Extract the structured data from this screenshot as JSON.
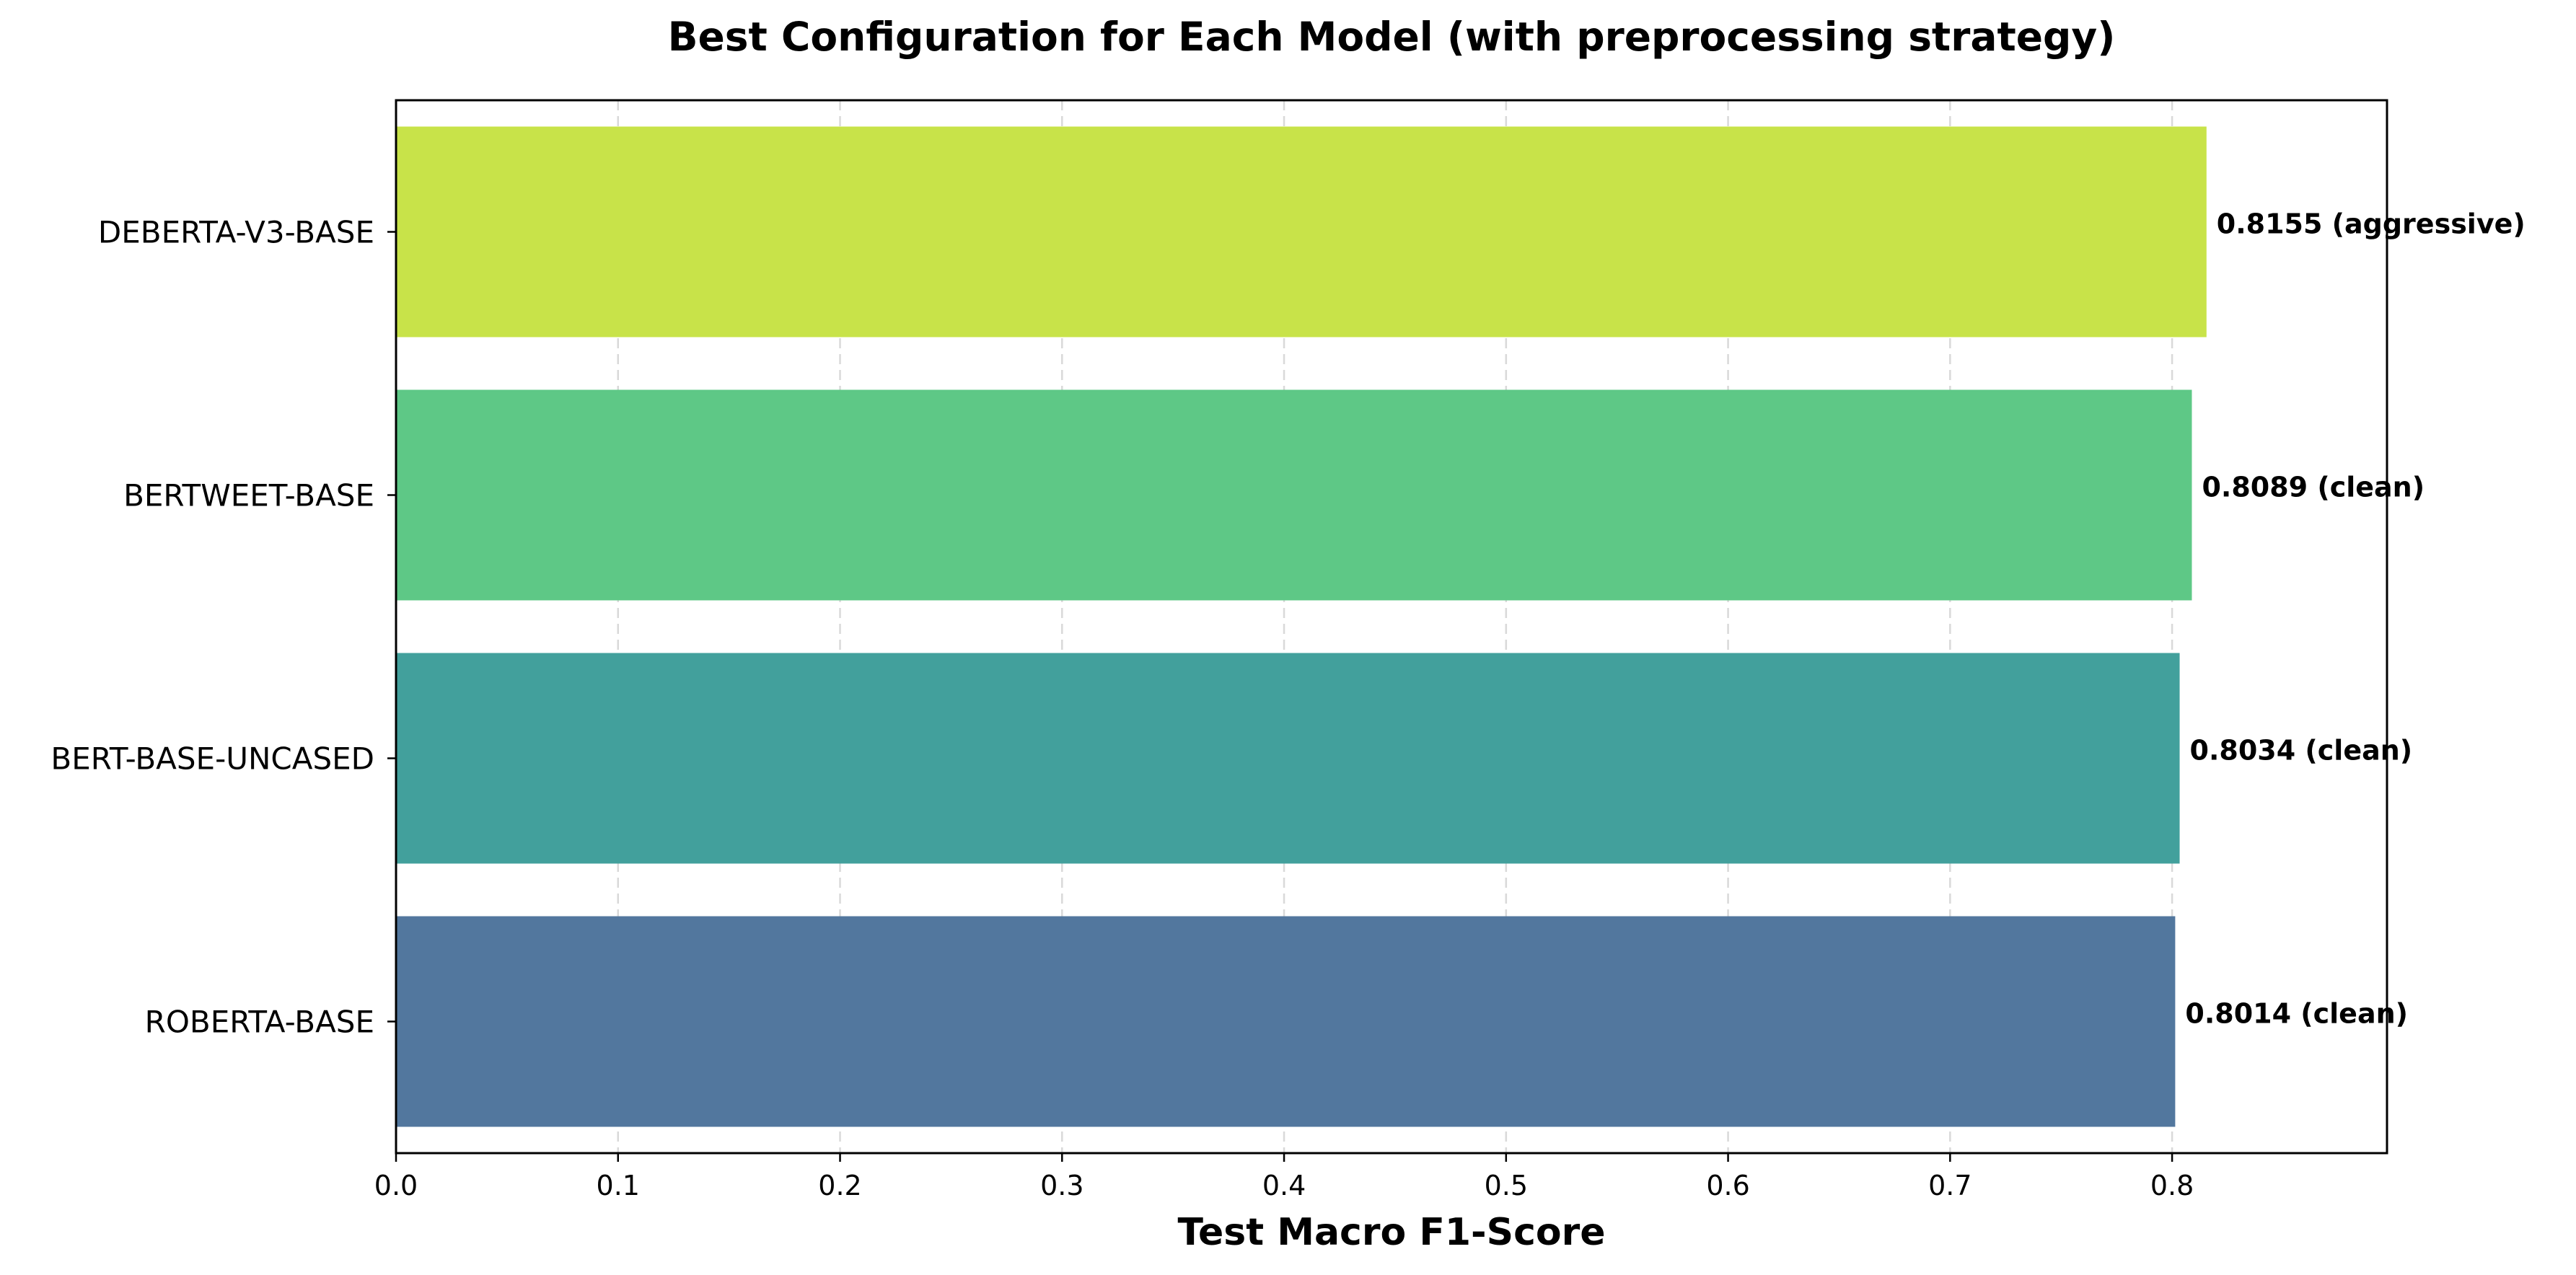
{
  "chart_data": {
    "type": "bar",
    "orientation": "horizontal",
    "title": "Best Configuration for Each Model (with preprocessing strategy)",
    "xlabel": "Test Macro F1-Score",
    "ylabel": "",
    "xlim": [
      0,
      0.8968
    ],
    "x_ticks": [
      "0.0",
      "0.1",
      "0.2",
      "0.3",
      "0.4",
      "0.5",
      "0.6",
      "0.7",
      "0.8"
    ],
    "grid": "vertical dashed",
    "categories": [
      "DEBERTA-V3-BASE",
      "BERTWEET-BASE",
      "BERT-BASE-UNCASED",
      "ROBERTA-BASE"
    ],
    "values": [
      0.8155,
      0.8089,
      0.8034,
      0.8014
    ],
    "data_labels": [
      "0.8155 (aggressive)",
      "0.8089 (clean)",
      "0.8034 (clean)",
      "0.8014 (clean)"
    ],
    "colors": [
      "#c8e349",
      "#5ec886",
      "#42a09c",
      "#52779e"
    ]
  }
}
